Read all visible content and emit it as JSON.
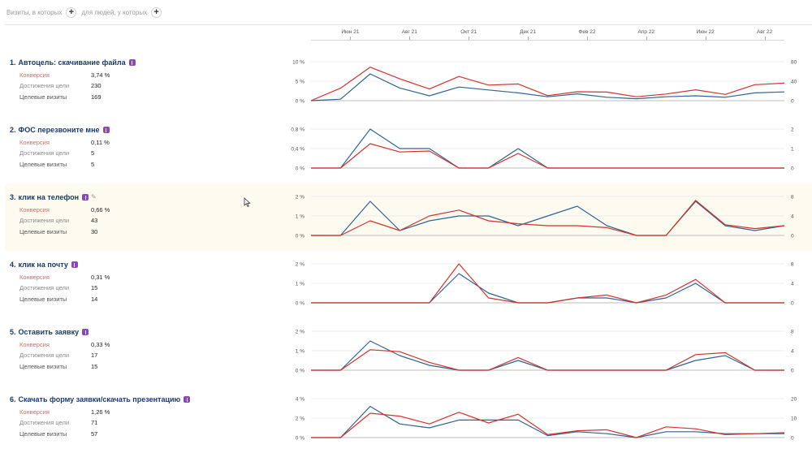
{
  "filters": {
    "visits_label": "Визиты, в которых",
    "people_label": "для людей, у которых"
  },
  "x_axis": {
    "ticks": [
      "Июн 21",
      "Авг 21",
      "Окт 21",
      "Дек 21",
      "Фев 22",
      "Апр 22",
      "Июн 22",
      "Авг 22"
    ]
  },
  "colors": {
    "conversion": "#d6322c",
    "visits": "#2f6593",
    "grid": "#ececec",
    "axis": "#bdbdbd"
  },
  "metric_labels": {
    "conversion": "Конверсия",
    "achievements": "Достижения цели",
    "visits": "Целевые визиты"
  },
  "goals": [
    {
      "num": "1.",
      "name": "Автоцель: скачивание файла",
      "badge": true,
      "pencil": false,
      "highlighted": false,
      "conversion": "3,74 %",
      "achievements": "230",
      "visits": "169"
    },
    {
      "num": "2.",
      "name": "ФОС перезвоните мне",
      "badge": true,
      "pencil": false,
      "highlighted": false,
      "conversion": "0,11 %",
      "achievements": "5",
      "visits": "5"
    },
    {
      "num": "3.",
      "name": "клик на телефон",
      "badge": true,
      "pencil": true,
      "highlighted": true,
      "conversion": "0,66 %",
      "achievements": "43",
      "visits": "30"
    },
    {
      "num": "4.",
      "name": "клик на почту",
      "badge": true,
      "pencil": false,
      "highlighted": false,
      "conversion": "0,31 %",
      "achievements": "15",
      "visits": "14"
    },
    {
      "num": "5.",
      "name": "Оставить заявку",
      "badge": true,
      "pencil": false,
      "highlighted": false,
      "conversion": "0,33 %",
      "achievements": "17",
      "visits": "15"
    },
    {
      "num": "6.",
      "name": "Скачать форму заявки/скачать презентацию",
      "badge": true,
      "pencil": false,
      "highlighted": false,
      "conversion": "1,26 %",
      "achievements": "71",
      "visits": "57"
    }
  ],
  "chart_data": [
    {
      "type": "line",
      "x": [
        "Май 21",
        "Июн 21",
        "Июл 21",
        "Авг 21",
        "Сен 21",
        "Окт 21",
        "Ноя 21",
        "Дек 21",
        "Янв 22",
        "Фев 22",
        "Мар 22",
        "Апр 22",
        "Май 22",
        "Июн 22",
        "Июл 22",
        "Авг 22",
        "Сен 22"
      ],
      "left_ticks": [
        "10 %",
        "5 %",
        "0 %"
      ],
      "left_max": 10,
      "right_ticks": [
        "80",
        "40",
        "0"
      ],
      "right_max": 80,
      "series": [
        {
          "role": "conversion",
          "axis": "left",
          "values": [
            0,
            3.2,
            8.6,
            5.6,
            3.0,
            6.2,
            4.0,
            4.3,
            1.3,
            2.3,
            2.2,
            1.0,
            1.7,
            2.8,
            1.6,
            4.1,
            4.5
          ]
        },
        {
          "role": "visits",
          "axis": "right",
          "values": [
            0,
            3,
            55,
            26,
            10,
            28,
            22,
            16,
            8,
            14,
            7,
            4,
            8,
            10,
            7,
            16,
            18
          ]
        }
      ]
    },
    {
      "type": "line",
      "x": [
        "Май 21",
        "Июн 21",
        "Июл 21",
        "Авг 21",
        "Сен 21",
        "Окт 21",
        "Ноя 21",
        "Дек 21",
        "Янв 22",
        "Фев 22",
        "Мар 22",
        "Апр 22",
        "Май 22",
        "Июн 22",
        "Июл 22",
        "Авг 22",
        "Сен 22"
      ],
      "left_ticks": [
        "0,8 %",
        "0,4 %",
        "0 %"
      ],
      "left_max": 0.8,
      "right_ticks": [
        "2",
        "1",
        "0"
      ],
      "right_max": 2,
      "series": [
        {
          "role": "conversion",
          "axis": "left",
          "values": [
            0,
            0,
            0.5,
            0.33,
            0.35,
            0,
            0,
            0.3,
            0,
            0,
            0,
            0,
            0,
            0,
            0,
            0,
            0
          ]
        },
        {
          "role": "visits",
          "axis": "right",
          "values": [
            0,
            0,
            2,
            1,
            1,
            0,
            0,
            1,
            0,
            0,
            0,
            0,
            0,
            0,
            0,
            0,
            0
          ]
        }
      ]
    },
    {
      "type": "line",
      "x": [
        "Май 21",
        "Июн 21",
        "Июл 21",
        "Авг 21",
        "Сен 21",
        "Окт 21",
        "Ноя 21",
        "Дек 21",
        "Янв 22",
        "Фев 22",
        "Мар 22",
        "Апр 22",
        "Май 22",
        "Июн 22",
        "Июл 22",
        "Авг 22",
        "Сен 22"
      ],
      "left_ticks": [
        "2 %",
        "1 %",
        "0 %"
      ],
      "left_max": 2,
      "right_ticks": [
        "8",
        "4",
        "0"
      ],
      "right_max": 8,
      "series": [
        {
          "role": "conversion",
          "axis": "left",
          "values": [
            0,
            0,
            0.75,
            0.25,
            1.0,
            1.3,
            0.75,
            0.6,
            0.5,
            0.5,
            0.4,
            0,
            0,
            1.8,
            0.55,
            0.35,
            0.5
          ]
        },
        {
          "role": "visits",
          "axis": "right",
          "values": [
            0,
            0,
            7,
            1,
            3,
            4,
            4,
            2,
            4,
            6,
            2,
            0,
            0,
            7,
            2,
            1,
            2
          ]
        }
      ]
    },
    {
      "type": "line",
      "x": [
        "Май 21",
        "Июн 21",
        "Июл 21",
        "Авг 21",
        "Сен 21",
        "Окт 21",
        "Ноя 21",
        "Дек 21",
        "Янв 22",
        "Фев 22",
        "Мар 22",
        "Апр 22",
        "Май 22",
        "Июн 22",
        "Июл 22",
        "Авг 22",
        "Сен 22"
      ],
      "left_ticks": [
        "2 %",
        "1 %",
        "0 %"
      ],
      "left_max": 2,
      "right_ticks": [
        "8",
        "4",
        "0"
      ],
      "right_max": 8,
      "series": [
        {
          "role": "conversion",
          "axis": "left",
          "values": [
            0,
            0,
            0,
            0,
            0,
            2.0,
            0.25,
            0,
            0,
            0.25,
            0.4,
            0,
            0.4,
            1.2,
            0,
            0,
            0
          ]
        },
        {
          "role": "visits",
          "axis": "right",
          "values": [
            0,
            0,
            0,
            0,
            0,
            6,
            2,
            0,
            0,
            1,
            1,
            0,
            1,
            4,
            0,
            0,
            0
          ]
        }
      ]
    },
    {
      "type": "line",
      "x": [
        "Май 21",
        "Июн 21",
        "Июл 21",
        "Авг 21",
        "Сен 21",
        "Окт 21",
        "Ноя 21",
        "Дек 21",
        "Янв 22",
        "Фев 22",
        "Мар 22",
        "Апр 22",
        "Май 22",
        "Июн 22",
        "Июл 22",
        "Авг 22",
        "Сен 22"
      ],
      "left_ticks": [
        "2 %",
        "1 %",
        "0 %"
      ],
      "left_max": 2,
      "right_ticks": [
        "8",
        "4",
        "0"
      ],
      "right_max": 8,
      "series": [
        {
          "role": "conversion",
          "axis": "left",
          "values": [
            0,
            0,
            1.05,
            0.95,
            0.4,
            0,
            0,
            0.65,
            0,
            0,
            0,
            0,
            0,
            0.8,
            0.9,
            0,
            0
          ]
        },
        {
          "role": "visits",
          "axis": "right",
          "values": [
            0,
            0,
            6,
            3,
            1,
            0,
            0,
            2,
            0,
            0,
            0,
            0,
            0,
            2,
            3,
            0,
            0
          ]
        }
      ]
    },
    {
      "type": "line",
      "x": [
        "Май 21",
        "Июн 21",
        "Июл 21",
        "Авг 21",
        "Сен 21",
        "Окт 21",
        "Ноя 21",
        "Дек 21",
        "Янв 22",
        "Фев 22",
        "Мар 22",
        "Апр 22",
        "Май 22",
        "Июн 22",
        "Июл 22",
        "Авг 22",
        "Сен 22"
      ],
      "left_ticks": [
        "4 %",
        "2 %",
        "0 %"
      ],
      "left_max": 4,
      "right_ticks": [
        "20",
        "10",
        "0"
      ],
      "right_max": 20,
      "series": [
        {
          "role": "conversion",
          "axis": "left",
          "values": [
            0,
            0,
            2.5,
            2.2,
            1.4,
            2.6,
            1.5,
            2.4,
            0.3,
            0.7,
            0.8,
            0,
            1.1,
            0.9,
            0.3,
            0.4,
            0.5
          ]
        },
        {
          "role": "visits",
          "axis": "right",
          "values": [
            0,
            0,
            16,
            7,
            5,
            9,
            9,
            9,
            1,
            3,
            2,
            0,
            3,
            3,
            2,
            2,
            2
          ]
        }
      ]
    }
  ]
}
